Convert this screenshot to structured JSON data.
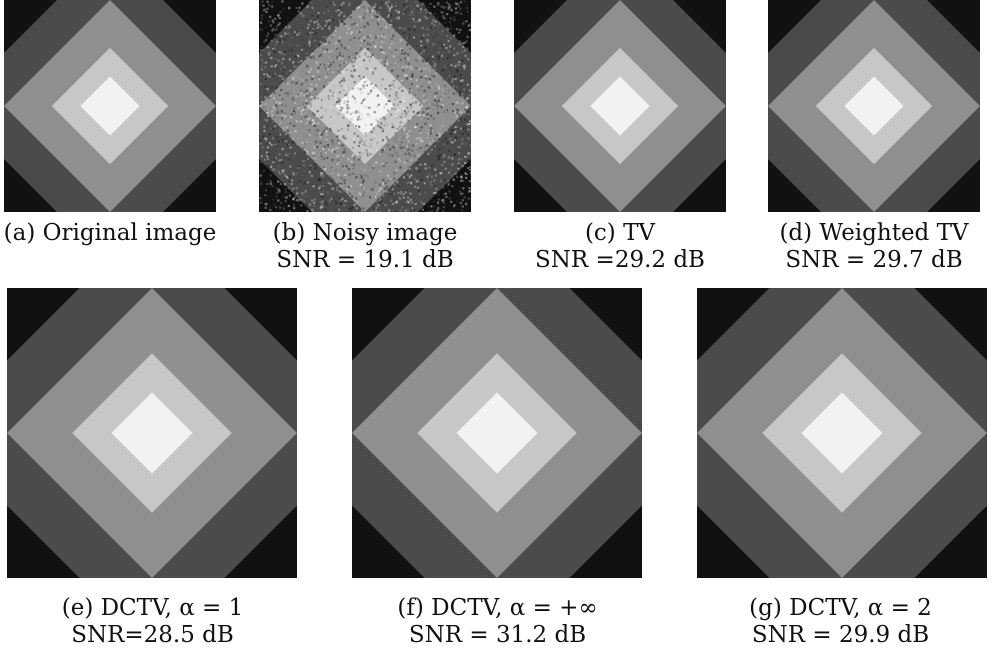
{
  "figure": {
    "panels": [
      {
        "id": "a",
        "caption": "(a) Original image",
        "snr": "",
        "style": "original"
      },
      {
        "id": "b",
        "caption": "(b) Noisy image",
        "snr": "SNR = 19.1 dB",
        "style": "noisy"
      },
      {
        "id": "c",
        "caption": "(c) TV",
        "snr": "SNR =29.2 dB",
        "style": "smooth"
      },
      {
        "id": "d",
        "caption": "(d) Weighted TV",
        "snr": "SNR = 29.7 dB",
        "style": "smooth"
      },
      {
        "id": "e",
        "caption": "(e) DCTV, α = 1",
        "snr": "SNR=28.5 dB",
        "style": "smooth"
      },
      {
        "id": "f",
        "caption": "(f) DCTV, α = +∞",
        "snr": "SNR = 31.2 dB",
        "style": "smooth"
      },
      {
        "id": "g",
        "caption": "(g) DCTV, α = 2",
        "snr": "SNR = 29.9 dB",
        "style": "smooth"
      }
    ],
    "gray_levels": {
      "background": "#111111",
      "ring1": "#4b4b4b",
      "ring2": "#8f8f8f",
      "ring3": "#c7c7c7",
      "center": "#f2f2f2"
    }
  }
}
